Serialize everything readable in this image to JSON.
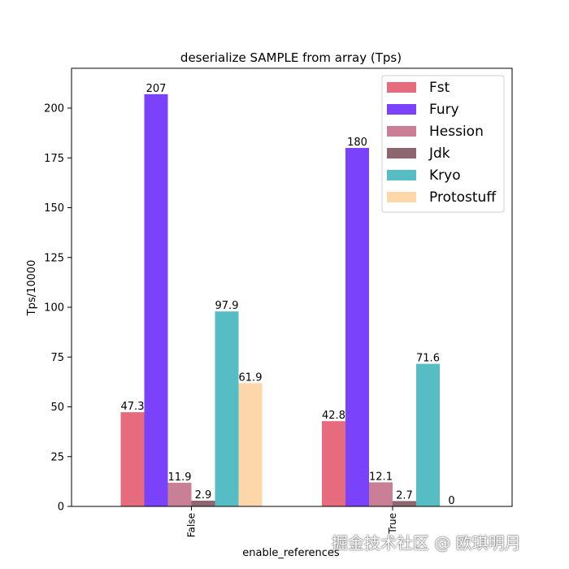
{
  "chart_data": {
    "type": "bar",
    "title": "deserialize SAMPLE from array (Tps)",
    "xlabel": "enable_references",
    "ylabel": "Tps/10000",
    "categories": [
      "False",
      "True"
    ],
    "ylim": [
      0,
      220
    ],
    "yticks": [
      0,
      25,
      50,
      75,
      100,
      125,
      150,
      175,
      200
    ],
    "series": [
      {
        "name": "Fst",
        "color": "#e56b7d",
        "values": [
          47.3,
          42.8
        ],
        "labels": [
          "47.3",
          "42.8"
        ]
      },
      {
        "name": "Fury",
        "color": "#7a43fb",
        "values": [
          207,
          180
        ],
        "labels": [
          "207",
          "180"
        ]
      },
      {
        "name": "Hession",
        "color": "#c98097",
        "values": [
          11.9,
          12.1
        ],
        "labels": [
          "11.9",
          "12.1"
        ]
      },
      {
        "name": "Jdk",
        "color": "#8e6670",
        "values": [
          2.9,
          2.7
        ],
        "labels": [
          "2.9",
          "2.7"
        ]
      },
      {
        "name": "Kryo",
        "color": "#56bdc5",
        "values": [
          97.9,
          71.6
        ],
        "labels": [
          "97.9",
          "71.6"
        ]
      },
      {
        "name": "Protostuff",
        "color": "#fdd6a9",
        "values": [
          61.9,
          0
        ],
        "labels": [
          "61.9",
          "0"
        ]
      }
    ],
    "grid": false,
    "legend_position": "top-right"
  },
  "watermark": "掘金技术社区 @ 欧琪明月"
}
